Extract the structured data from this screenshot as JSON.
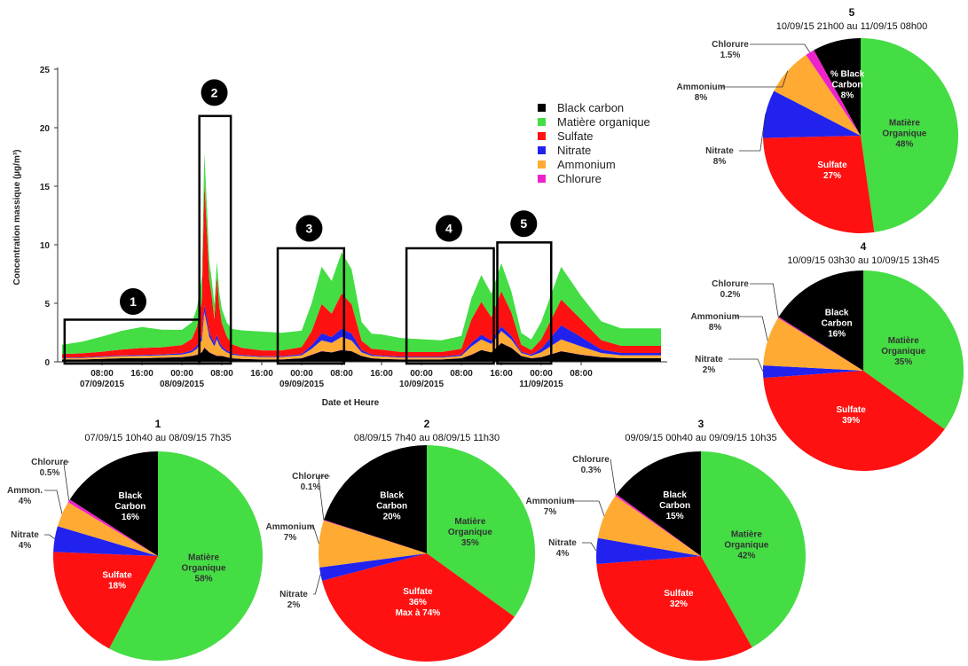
{
  "colors": {
    "black_carbon": "#000000",
    "organique": "#44dd44",
    "sulfate": "#ff1111",
    "nitrate": "#2222ee",
    "ammonium": "#ffaa33",
    "chlorure": "#ee22cc"
  },
  "chart_data": [
    {
      "type": "area",
      "stacked": true,
      "xlabel": "Date et Heure",
      "ylabel": "Concentration massique (µg/m³)",
      "ylim": [
        0,
        25
      ],
      "yticks": [
        "0",
        "5",
        "10",
        "15",
        "20",
        "25"
      ],
      "xticks": [
        {
          "line1": "08:00",
          "line2": "07/09/2015"
        },
        {
          "line1": "16:00",
          "line2": ""
        },
        {
          "line1": "00:00",
          "line2": "08/09/2015"
        },
        {
          "line1": "08:00",
          "line2": ""
        },
        {
          "line1": "16:00",
          "line2": ""
        },
        {
          "line1": "00:00",
          "line2": "09/09/2015"
        },
        {
          "line1": "08:00",
          "line2": ""
        },
        {
          "line1": "16:00",
          "line2": ""
        },
        {
          "line1": "00:00",
          "line2": "10/09/2015"
        },
        {
          "line1": "08:00",
          "line2": ""
        },
        {
          "line1": "16:00",
          "line2": ""
        },
        {
          "line1": "00:00",
          "line2": "11/09/2015"
        },
        {
          "line1": "08:00",
          "line2": ""
        }
      ],
      "legend": [
        "Black carbon",
        "Matière organique",
        "Sulfate",
        "Nitrate",
        "Ammonium",
        "Chlorure"
      ],
      "legend_position": "top-right",
      "episodes": [
        "1",
        "2",
        "3",
        "4",
        "5"
      ],
      "x_hours": [
        0,
        4,
        8,
        12,
        16,
        20,
        24,
        26,
        27,
        28,
        28.5,
        29,
        29.5,
        30,
        30.5,
        31,
        31.5,
        32,
        33,
        34,
        36,
        40,
        44,
        48,
        50,
        52,
        54,
        56,
        58,
        60,
        62,
        64,
        68,
        72,
        76,
        80,
        82,
        84,
        86,
        88,
        90,
        92,
        94,
        96,
        100,
        104,
        108,
        112,
        116,
        120
      ],
      "series": [
        {
          "name": "Black carbon",
          "values": [
            0.2,
            0.2,
            0.25,
            0.3,
            0.3,
            0.35,
            0.4,
            0.5,
            0.6,
            0.8,
            1.2,
            1.0,
            0.8,
            0.7,
            0.6,
            0.5,
            0.5,
            0.5,
            0.4,
            0.3,
            0.25,
            0.2,
            0.2,
            0.3,
            0.6,
            0.9,
            0.8,
            1.0,
            0.9,
            0.5,
            0.3,
            0.25,
            0.2,
            0.2,
            0.2,
            0.3,
            0.6,
            1.0,
            0.8,
            1.6,
            1.2,
            0.5,
            0.3,
            0.4,
            0.9,
            0.6,
            0.4,
            0.3,
            0.3,
            0.3
          ]
        },
        {
          "name": "Matière organique",
          "values": [
            0.8,
            1.0,
            1.3,
            1.6,
            1.8,
            1.5,
            1.3,
            1.4,
            1.6,
            2.0,
            2.5,
            2.2,
            1.6,
            1.4,
            1.3,
            1.2,
            1.2,
            1.2,
            1.2,
            1.3,
            1.5,
            1.6,
            1.5,
            1.4,
            2.4,
            3.2,
            2.8,
            3.5,
            3.0,
            1.6,
            1.3,
            1.3,
            1.2,
            1.1,
            1.0,
            1.1,
            1.8,
            2.3,
            2.0,
            2.4,
            1.8,
            1.0,
            0.9,
            1.5,
            2.8,
            2.0,
            1.6,
            1.5,
            1.5,
            1.5
          ]
        },
        {
          "name": "Sulfate",
          "values": [
            0.3,
            0.35,
            0.4,
            0.5,
            0.6,
            0.6,
            0.7,
            1.0,
            1.6,
            3.0,
            10.5,
            7.5,
            4.5,
            3.5,
            2.0,
            5.0,
            3.0,
            2.0,
            1.2,
            0.8,
            0.6,
            0.5,
            0.5,
            0.6,
            1.2,
            2.5,
            2.0,
            3.0,
            2.5,
            0.8,
            0.5,
            0.5,
            0.4,
            0.4,
            0.4,
            0.5,
            2.0,
            2.8,
            2.0,
            3.0,
            2.0,
            0.6,
            0.4,
            0.8,
            2.2,
            1.5,
            0.8,
            0.6,
            0.6,
            0.6
          ]
        },
        {
          "name": "Nitrate",
          "values": [
            0.05,
            0.05,
            0.05,
            0.06,
            0.07,
            0.08,
            0.1,
            0.15,
            0.25,
            0.4,
            0.6,
            0.5,
            0.4,
            0.3,
            0.3,
            0.4,
            0.3,
            0.2,
            0.15,
            0.1,
            0.08,
            0.07,
            0.07,
            0.1,
            0.3,
            0.6,
            0.5,
            0.7,
            0.6,
            0.2,
            0.1,
            0.08,
            0.07,
            0.07,
            0.07,
            0.1,
            0.3,
            0.4,
            0.3,
            0.4,
            0.3,
            0.1,
            0.1,
            0.3,
            1.2,
            0.8,
            0.3,
            0.2,
            0.2,
            0.2
          ]
        },
        {
          "name": "Ammonium",
          "values": [
            0.1,
            0.12,
            0.15,
            0.18,
            0.2,
            0.2,
            0.22,
            0.3,
            0.5,
            1.0,
            3.0,
            2.2,
            1.3,
            1.0,
            0.7,
            1.4,
            0.9,
            0.6,
            0.4,
            0.3,
            0.25,
            0.2,
            0.2,
            0.25,
            0.5,
            0.9,
            0.8,
            1.1,
            0.9,
            0.3,
            0.2,
            0.2,
            0.15,
            0.15,
            0.15,
            0.2,
            0.7,
            0.9,
            0.7,
            1.0,
            0.7,
            0.25,
            0.2,
            0.4,
            1.0,
            0.7,
            0.35,
            0.25,
            0.25,
            0.25
          ]
        },
        {
          "name": "Chlorure",
          "values": [
            0.01,
            0.01,
            0.01,
            0.01,
            0.01,
            0.01,
            0.01,
            0.02,
            0.02,
            0.03,
            0.05,
            0.04,
            0.03,
            0.02,
            0.02,
            0.03,
            0.02,
            0.02,
            0.01,
            0.01,
            0.01,
            0.01,
            0.01,
            0.01,
            0.02,
            0.03,
            0.02,
            0.03,
            0.02,
            0.01,
            0.01,
            0.01,
            0.01,
            0.01,
            0.01,
            0.01,
            0.02,
            0.02,
            0.02,
            0.03,
            0.02,
            0.01,
            0.01,
            0.01,
            0.02,
            0.02,
            0.01,
            0.01,
            0.01,
            0.01
          ]
        }
      ]
    },
    {
      "type": "pie",
      "number": "1",
      "subtitle": "07/09/15 10h40  au 08/09/15  7h35",
      "slices": [
        {
          "key": "organique",
          "value": 58,
          "line1": "Matière",
          "line2": "Organique",
          "line3": "58%"
        },
        {
          "key": "sulfate",
          "value": 18,
          "line1": "Sulfate",
          "line2": "18%",
          "line3": ""
        },
        {
          "key": "nitrate",
          "value": 4,
          "line1": "Nitrate",
          "line2": "4%",
          "line3": ""
        },
        {
          "key": "ammonium",
          "value": 4,
          "line1": "Ammon.",
          "line2": "4%",
          "line3": ""
        },
        {
          "key": "chlorure",
          "value": 0.5,
          "line1": "Chlorure",
          "line2": "0.5%",
          "line3": ""
        },
        {
          "key": "black_carbon",
          "value": 16,
          "line1": "Black",
          "line2": "Carbon",
          "line3": "16%"
        }
      ]
    },
    {
      "type": "pie",
      "number": "2",
      "subtitle": "08/09/15 7h40  au 08/09/15  11h30",
      "slices": [
        {
          "key": "organique",
          "value": 35,
          "line1": "Matière",
          "line2": "Organique",
          "line3": "35%"
        },
        {
          "key": "sulfate",
          "value": 36,
          "line1": "Sulfate",
          "line2": "36%",
          "line3": "Max à 74%"
        },
        {
          "key": "nitrate",
          "value": 2,
          "line1": "Nitrate",
          "line2": "2%",
          "line3": ""
        },
        {
          "key": "ammonium",
          "value": 7,
          "line1": "Ammonium",
          "line2": "7%",
          "line3": ""
        },
        {
          "key": "chlorure",
          "value": 0.1,
          "line1": "Chlorure",
          "line2": "0.1%",
          "line3": ""
        },
        {
          "key": "black_carbon",
          "value": 20,
          "line1": "Black",
          "line2": "Carbon",
          "line3": "20%"
        }
      ]
    },
    {
      "type": "pie",
      "number": "3",
      "subtitle": "09/09/15 00h40  au 09/09/15  10h35",
      "slices": [
        {
          "key": "organique",
          "value": 42,
          "line1": "Matière",
          "line2": "Organique",
          "line3": "42%"
        },
        {
          "key": "sulfate",
          "value": 32,
          "line1": "Sulfate",
          "line2": "32%",
          "line3": ""
        },
        {
          "key": "nitrate",
          "value": 4,
          "line1": "Nitrate",
          "line2": "4%",
          "line3": ""
        },
        {
          "key": "ammonium",
          "value": 7,
          "line1": "Ammonium",
          "line2": "7%",
          "line3": ""
        },
        {
          "key": "chlorure",
          "value": 0.3,
          "line1": "Chlorure",
          "line2": "0.3%",
          "line3": ""
        },
        {
          "key": "black_carbon",
          "value": 15,
          "line1": "Black",
          "line2": "Carbon",
          "line3": "15%"
        }
      ]
    },
    {
      "type": "pie",
      "number": "4",
      "subtitle": "10/09/15 03h30  au 10/09/15  13h45",
      "slices": [
        {
          "key": "organique",
          "value": 35,
          "line1": "Matière",
          "line2": "Organique",
          "line3": "35%"
        },
        {
          "key": "sulfate",
          "value": 39,
          "line1": "Sulfate",
          "line2": "39%",
          "line3": ""
        },
        {
          "key": "nitrate",
          "value": 2,
          "line1": "Nitrate",
          "line2": "2%",
          "line3": ""
        },
        {
          "key": "ammonium",
          "value": 8,
          "line1": "Ammonium",
          "line2": "8%",
          "line3": ""
        },
        {
          "key": "chlorure",
          "value": 0.2,
          "line1": "Chlorure",
          "line2": "0.2%",
          "line3": ""
        },
        {
          "key": "black_carbon",
          "value": 16,
          "line1": "Black",
          "line2": "Carbon",
          "line3": "16%"
        }
      ]
    },
    {
      "type": "pie",
      "number": "5",
      "subtitle": "10/09/15 21h00  au 11/09/15  08h00",
      "slices": [
        {
          "key": "organique",
          "value": 48,
          "line1": "Matière",
          "line2": "Organique",
          "line3": "48%"
        },
        {
          "key": "sulfate",
          "value": 27,
          "line1": "Sulfate",
          "line2": "27%",
          "line3": ""
        },
        {
          "key": "nitrate",
          "value": 8,
          "line1": "Nitrate",
          "line2": "8%",
          "line3": ""
        },
        {
          "key": "ammonium",
          "value": 8,
          "line1": "Ammonium",
          "line2": "8%",
          "line3": ""
        },
        {
          "key": "chlorure",
          "value": 1.5,
          "line1": "Chlorure",
          "line2": "1.5%",
          "line3": ""
        },
        {
          "key": "black_carbon",
          "value": 8,
          "line1": "% Black",
          "line2": "Carbon",
          "line3": "8%"
        }
      ]
    }
  ]
}
